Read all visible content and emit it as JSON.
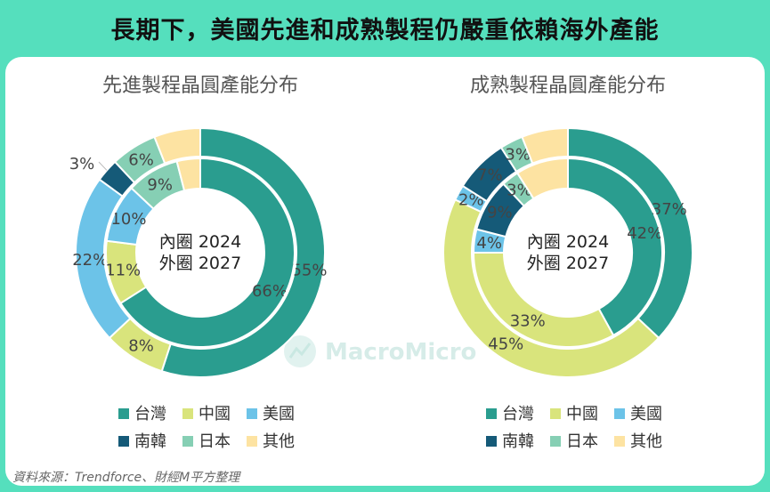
{
  "title": "長期下，美國先進和成熟製程仍嚴重依賴海外產能",
  "source": "資料來源：Trendforce、財經M平方整理",
  "watermark": "MacroMicro",
  "colors": {
    "台灣": "#2a9d8f",
    "中國": "#d9e47c",
    "美國": "#6cc3e8",
    "南韓": "#155a78",
    "日本": "#86cfb4",
    "其他": "#fde3a2"
  },
  "chart_data": [
    {
      "type": "pie",
      "title": "先進製程晶圓產能分布",
      "center_lines": [
        "內圈 2024",
        "外圈 2027"
      ],
      "categories": [
        "台灣",
        "中國",
        "美國",
        "南韓",
        "日本",
        "其他"
      ],
      "series": [
        {
          "name": "2024",
          "ring": "inner",
          "values": [
            66,
            11,
            10,
            0,
            9,
            4
          ]
        },
        {
          "name": "2027",
          "ring": "outer",
          "values": [
            55,
            8,
            22,
            3,
            6,
            6
          ]
        }
      ],
      "legend_position": "bottom"
    },
    {
      "type": "pie",
      "title": "成熟製程晶圓產能分布",
      "center_lines": [
        "內圈 2024",
        "外圈 2027"
      ],
      "categories": [
        "台灣",
        "中國",
        "美國",
        "南韓",
        "日本",
        "其他"
      ],
      "series": [
        {
          "name": "2024",
          "ring": "inner",
          "values": [
            42,
            33,
            4,
            9,
            3,
            9
          ]
        },
        {
          "name": "2027",
          "ring": "outer",
          "values": [
            37,
            45,
            2,
            7,
            3,
            6
          ]
        }
      ],
      "legend_position": "bottom"
    }
  ],
  "visible_labels": [
    {
      "inner": [
        "66%",
        "11%",
        "10%",
        "",
        "9%",
        ""
      ],
      "outer": [
        "55%",
        "8%",
        "22%",
        "3%",
        "6%",
        ""
      ]
    },
    {
      "inner": [
        "42%",
        "33%",
        "4%",
        "9%",
        "3%",
        ""
      ],
      "outer": [
        "37%",
        "45%",
        "2%",
        "7%",
        "3%",
        ""
      ]
    }
  ]
}
